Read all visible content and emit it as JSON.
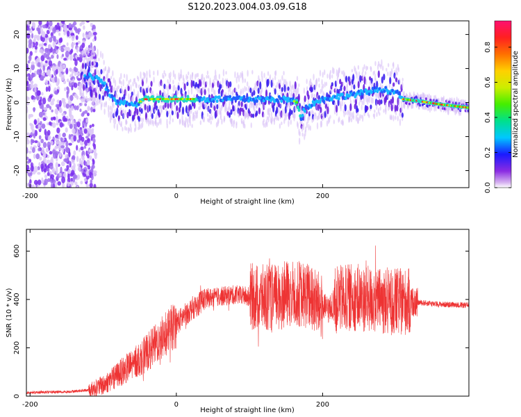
{
  "title": "S120.2023.004.03.09.G18",
  "chart_data": [
    {
      "type": "heatmap",
      "name": "spectrogram",
      "xlabel": "Height of straight line (km)",
      "ylabel": "Frequency (Hz)",
      "xlim": [
        -205,
        400
      ],
      "ylim": [
        -25,
        24
      ],
      "xticks": [
        -200,
        0,
        200
      ],
      "yticks": [
        -20,
        -10,
        0,
        10,
        20
      ],
      "colorbar": {
        "label": "Normalized spectral amplitude",
        "range": [
          0,
          0.95
        ],
        "ticks": [
          0.0,
          0.2,
          0.4,
          0.6,
          0.8
        ],
        "tick_labels": [
          "0.0",
          "0.2",
          "0.4",
          "0.6",
          "0.8"
        ]
      },
      "ridge": {
        "x": [
          -200,
          -140,
          -120,
          -100,
          -90,
          -80,
          -70,
          -60,
          -50,
          -45,
          -30,
          0,
          30,
          60,
          90,
          120,
          150,
          160,
          165,
          170,
          175,
          180,
          200,
          230,
          260,
          280,
          300,
          310,
          330,
          360,
          400
        ],
        "y": [
          6,
          6,
          8,
          6,
          2,
          0,
          0,
          -1,
          0,
          1,
          1,
          1,
          1,
          1,
          1,
          1,
          1,
          0.5,
          0,
          -5,
          -2,
          -1,
          1,
          2,
          3,
          4,
          3,
          1,
          0.5,
          -0.5,
          -1.5
        ]
      },
      "strong_segments": [
        [
          -50,
          -20
        ],
        [
          -20,
          30
        ],
        [
          160,
          170
        ],
        [
          310,
          400
        ]
      ],
      "grid": false
    },
    {
      "type": "line",
      "name": "snr",
      "xlabel": "Height of straight line (km)",
      "ylabel": "SNR (10 * v/v)",
      "xlim": [
        -205,
        400
      ],
      "ylim": [
        0,
        690
      ],
      "xticks": [
        -200,
        0,
        200
      ],
      "yticks": [
        0,
        200,
        400,
        600
      ],
      "color": "#ee3333",
      "series": [
        {
          "x": [
            -205,
            -150,
            -120,
            -100,
            -80,
            -60,
            -40,
            -20,
            0,
            20,
            40,
            80,
            120,
            140,
            160,
            180,
            200,
            210,
            220,
            240,
            260,
            280,
            300,
            320,
            340,
            360,
            380,
            400
          ],
          "values": [
            15,
            18,
            25,
            45,
            90,
            130,
            180,
            240,
            300,
            360,
            405,
            420,
            405,
            410,
            430,
            415,
            365,
            360,
            400,
            410,
            400,
            395,
            390,
            390,
            385,
            380,
            378,
            375
          ]
        }
      ],
      "grid": false
    }
  ]
}
